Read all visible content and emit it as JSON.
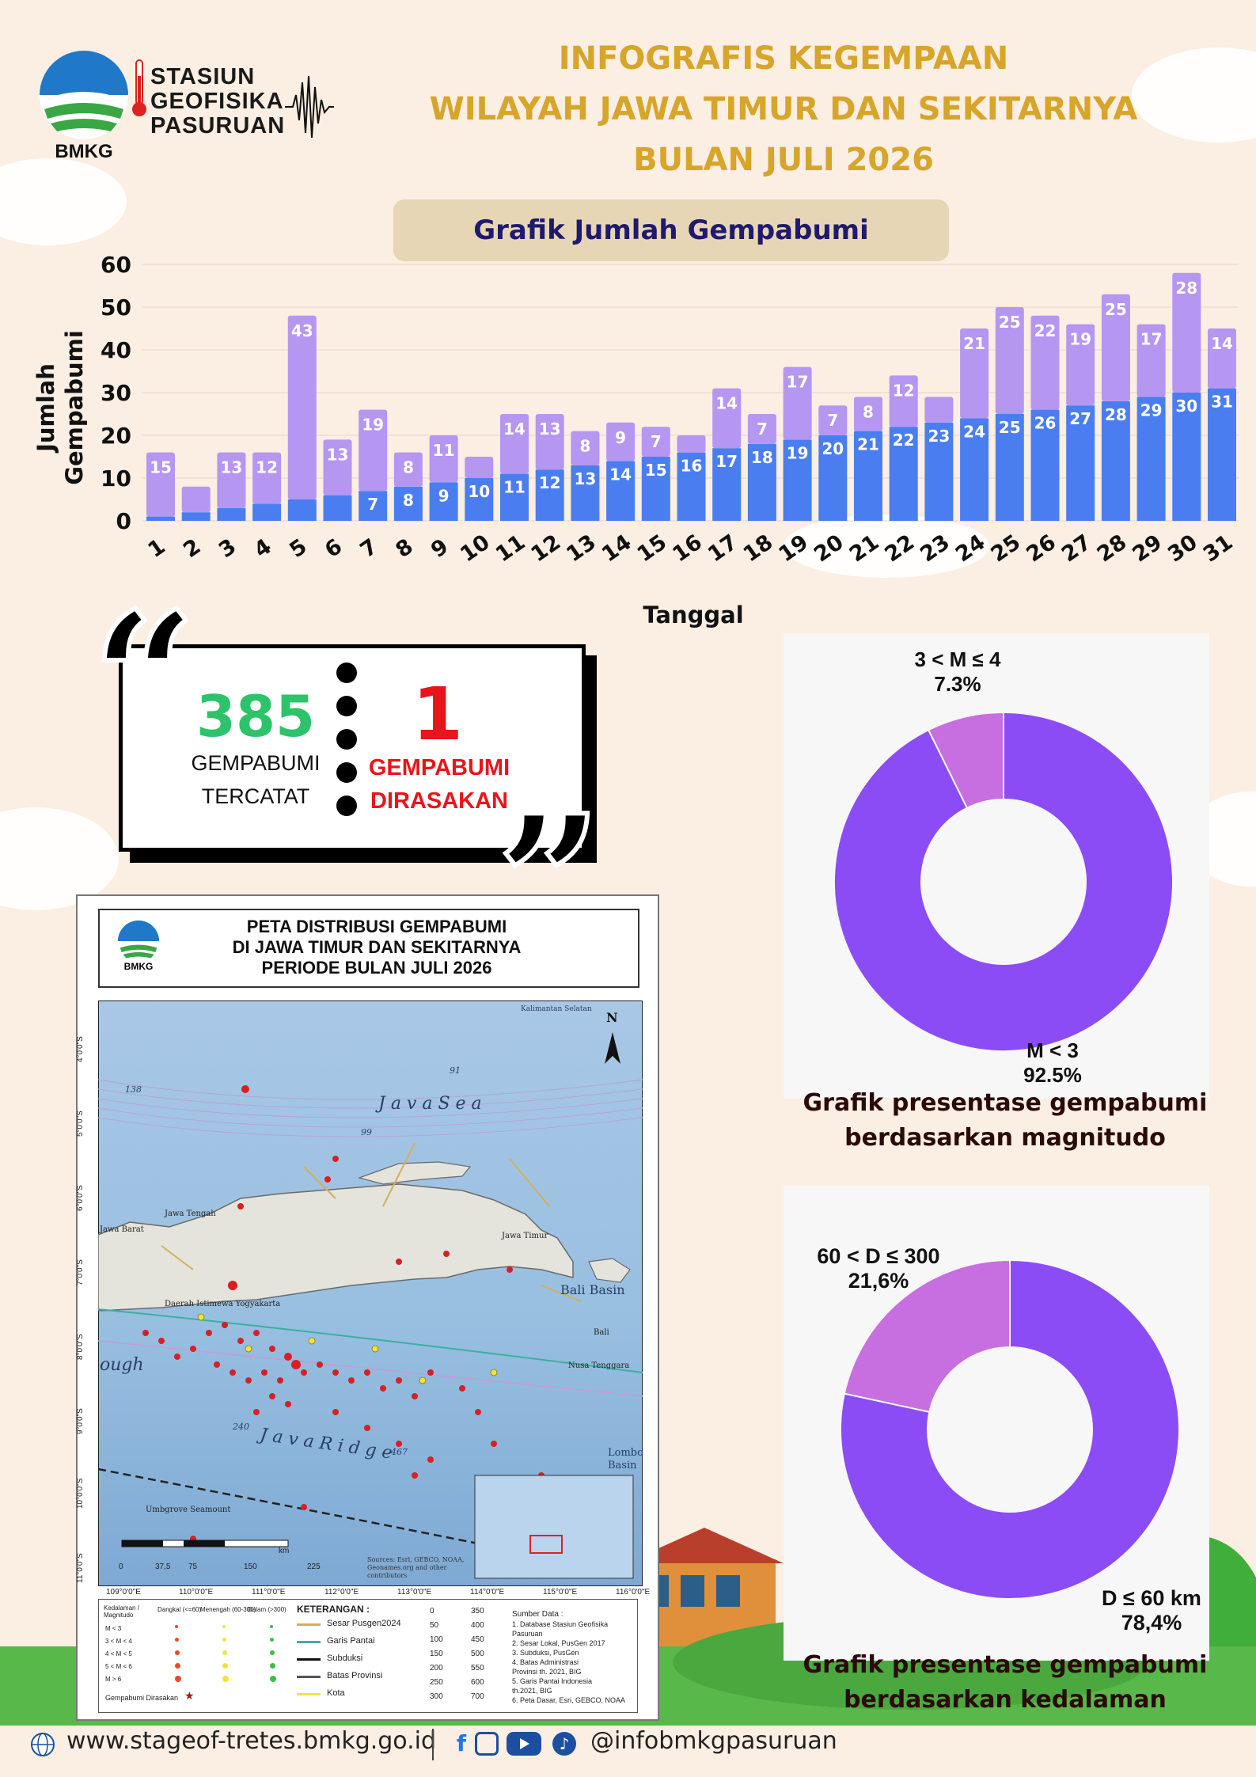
{
  "header": {
    "title_lines": [
      "INFOGRAFIS KEGEMPAAN",
      "WILAYAH JAWA TIMUR DAN SEKITARNYA",
      "BULAN JULI 2026"
    ]
  },
  "logo": {
    "bmkg_label": "BMKG",
    "station_lines": [
      "STASIUN",
      "GEOFISIKA",
      "PASURUAN"
    ]
  },
  "bar_chart_title": "Grafik Jumlah Gempabumi",
  "chart_data": [
    {
      "type": "bar",
      "stacked": true,
      "ylabel": "Jumlah Gempabumi",
      "xlabel": "Tanggal",
      "ylim": [
        0,
        60
      ],
      "yticks": [
        0,
        10,
        20,
        30,
        40,
        50,
        60
      ],
      "grid": true,
      "categories": [
        "1",
        "2",
        "3",
        "4",
        "5",
        "6",
        "7",
        "8",
        "9",
        "10",
        "11",
        "12",
        "13",
        "14",
        "15",
        "16",
        "17",
        "18",
        "19",
        "20",
        "21",
        "22",
        "23",
        "24",
        "25",
        "26",
        "27",
        "28",
        "29",
        "30",
        "31"
      ],
      "series": [
        {
          "color": "#4a7ef0",
          "values": [
            1,
            2,
            3,
            4,
            5,
            6,
            7,
            8,
            9,
            10,
            11,
            12,
            13,
            14,
            15,
            16,
            17,
            18,
            19,
            20,
            21,
            22,
            23,
            24,
            25,
            26,
            27,
            28,
            29,
            30,
            31
          ]
        },
        {
          "color": "#b596f0",
          "values": [
            15,
            6,
            13,
            12,
            43,
            13,
            19,
            8,
            11,
            5,
            14,
            13,
            8,
            9,
            7,
            4,
            14,
            7,
            17,
            7,
            8,
            12,
            6,
            21,
            25,
            22,
            19,
            25,
            17,
            28,
            14
          ]
        }
      ],
      "labels_bottom": [
        null,
        null,
        null,
        null,
        null,
        null,
        7,
        8,
        9,
        10,
        11,
        12,
        13,
        14,
        15,
        16,
        17,
        18,
        19,
        20,
        21,
        22,
        23,
        24,
        25,
        26,
        27,
        28,
        29,
        30,
        31
      ],
      "labels_top": [
        15,
        null,
        13,
        12,
        43,
        13,
        19,
        8,
        11,
        null,
        14,
        13,
        8,
        9,
        7,
        null,
        14,
        7,
        17,
        7,
        8,
        12,
        null,
        21,
        25,
        22,
        19,
        25,
        17,
        28,
        14
      ]
    },
    {
      "type": "pie",
      "donut": true,
      "labels": [
        "3 < M ≤ 4",
        "M < 3"
      ],
      "values": [
        7.3,
        92.5
      ],
      "value_labels": [
        "7.3%",
        "92.5%"
      ],
      "colors": [
        "#c76ee0",
        "#8b4cf6"
      ]
    },
    {
      "type": "pie",
      "donut": true,
      "labels": [
        "60 < D ≤ 300",
        "D ≤ 60 km"
      ],
      "values": [
        21.6,
        78.4
      ],
      "value_labels": [
        "21,6%",
        "78,4%"
      ],
      "colors": [
        "#c76ee0",
        "#8b4cf6"
      ]
    }
  ],
  "stats": {
    "recorded_count": "385",
    "recorded_label_lines": [
      "GEMPABUMI",
      "TERCATAT"
    ],
    "felt_count": "1",
    "felt_label_lines": [
      "GEMPABUMI",
      "DIRASAKAN"
    ],
    "colors": {
      "recorded": "#2dc36a",
      "felt": "#e8151b"
    }
  },
  "pie_captions": {
    "magnitude": [
      "Grafik presentase gempabumi",
      "berdasarkan magnitudo"
    ],
    "depth": [
      "Grafik presentase gempabumi",
      "berdasarkan kedalaman"
    ]
  },
  "map": {
    "title_lines": [
      "PETA DISTRIBUSI GEMPABUMI",
      "DI JAWA TIMUR DAN SEKITARNYA",
      "PERIODE BULAN JULI 2026"
    ],
    "bmkg_label": "BMKG",
    "lat_ticks": [
      "4°0'0\"S",
      "5°0'0\"S",
      "6°0'0\"S",
      "7°0'0\"S",
      "8°0'0\"S",
      "9°0'0\"S",
      "10°0'0\"S",
      "11°0'0\"S"
    ],
    "lon_ticks": [
      "109°0'0\"E",
      "110°0'0\"E",
      "111°0'0\"E",
      "112°0'0\"E",
      "113°0'0\"E",
      "114°0'0\"E",
      "115°0'0\"E",
      "116°0'0\"E"
    ],
    "place_labels": {
      "java_sea": "J a v a   S e a",
      "java_ridge": "J a v a   R i d g e",
      "bali_basin": "Bali Basin",
      "lombok_basin": "Lombo Basin",
      "kalimantan": "Kalimantan Selatan",
      "jawa_barat": "Jawa Barat",
      "jawa_tengah": "Jawa Tengah",
      "jawa_timur": "Jawa Timur",
      "yogyakarta": "Daerah Istimewa Yogyakarta",
      "bali": "Bali",
      "ntb": "Nusa Tenggara",
      "trough": "ough",
      "seamount": "Umbgrove Seamount",
      "depth_138": "138",
      "depth_99": "99",
      "depth_91": "91",
      "depth_240": "240",
      "depth_467": "467",
      "north": "N"
    },
    "scale_labels": [
      "0",
      "37,5",
      "75",
      "150",
      "225"
    ],
    "scale_unit": "km",
    "sources": "Sources: Esri, GEBCO, NOAA, Geonames.org and other contributors",
    "legend": {
      "heading": "KETERANGAN :",
      "items": [
        "Sesar Pusgen2024",
        "Garis Pantai",
        "Subduksi",
        "Batas Provinsi",
        "Kota"
      ],
      "depth_values_a": [
        "0",
        "50",
        "100",
        "150",
        "200",
        "250",
        "300"
      ],
      "depth_values_b": [
        "350",
        "400",
        "450",
        "500",
        "550",
        "600",
        "700"
      ],
      "matrix_header": [
        "Kedalaman / Magnitudo",
        "Dangkal (<=60)",
        "Menengah (60-300)",
        "Dalam (>300)"
      ],
      "matrix_rows": [
        "M < 3",
        "3 < M < 4",
        "4 < M < 5",
        "5 < M < 6",
        "M > 6"
      ],
      "felt_label": "Gempabumi Dirasakan",
      "sources_heading": "Sumber Data :",
      "sources_lines": [
        "1. Database Stasiun Geofisika",
        "Pasuruan",
        "2. Sesar Lokal, PusGen 2017",
        "3. Subduksi, PusGen",
        "4. Batas Administrasi",
        "Provinsi th. 2021, BIG",
        "5. Garis Pantai Indonesia",
        "th.2021, BIG",
        "6. Peta Dasar, Esri, GEBCO, NOAA"
      ]
    }
  },
  "footer": {
    "website": "www.stageof-tretes.bmkg.go.id",
    "social_handle": "@infobmkgpasuruan",
    "colors": {
      "facebook": "#1877f2",
      "instagram": "#1c4fa0",
      "youtube": "#1c4fa0",
      "tiktok": "#1c4fa0"
    }
  }
}
